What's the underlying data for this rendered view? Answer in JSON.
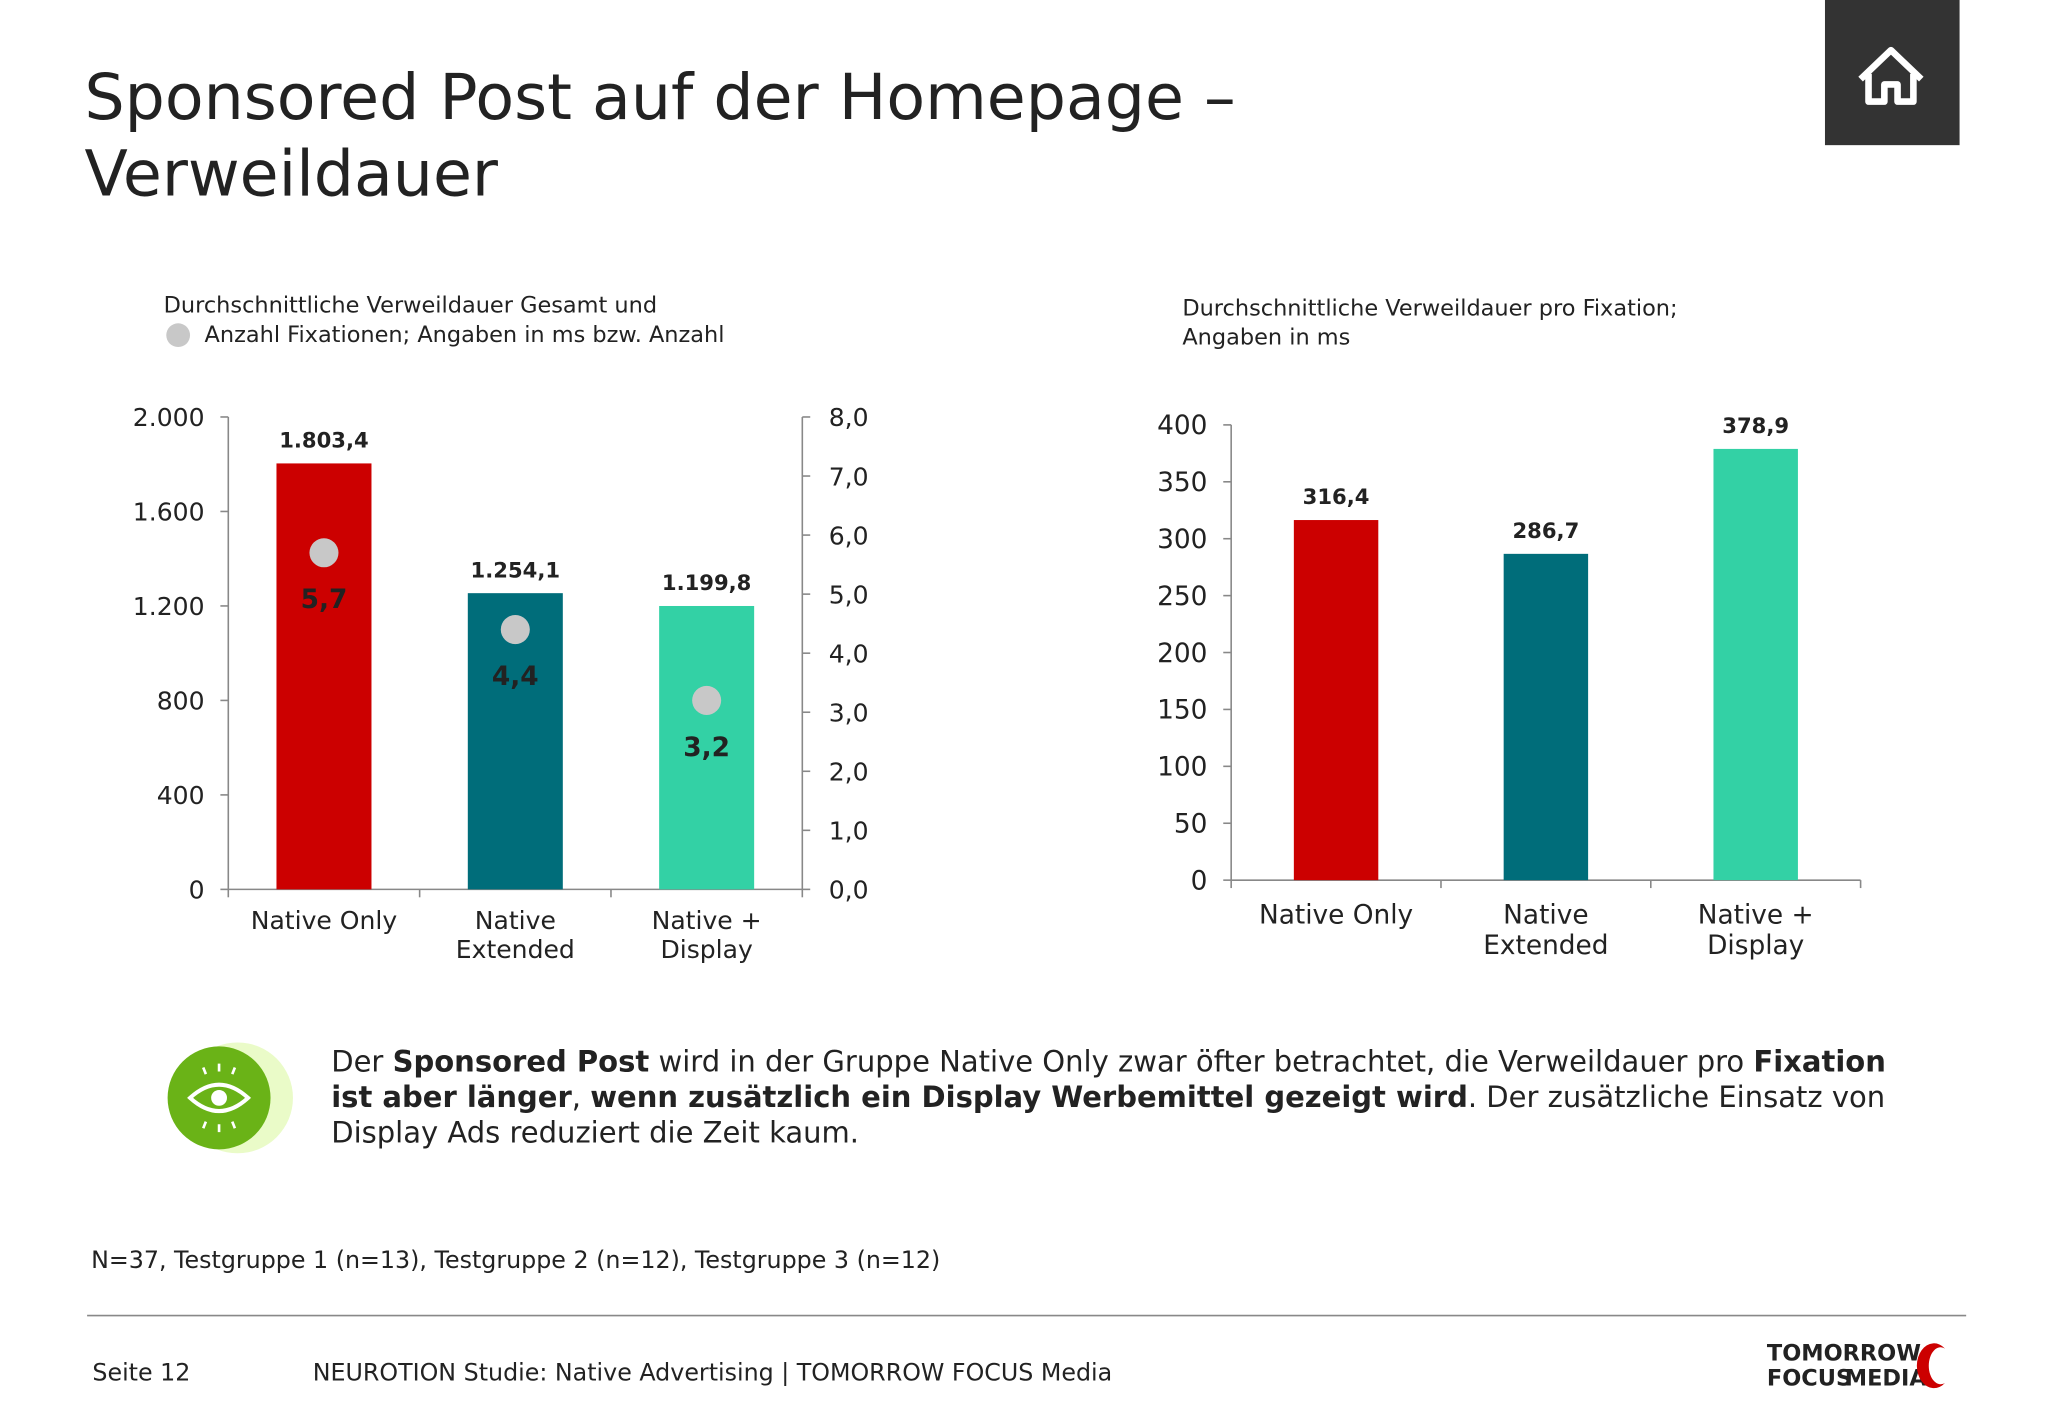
{
  "title": [
    "Sponsored Post auf der Homepage –",
    "Verweildauer"
  ],
  "chart_data": [
    {
      "type": "bar",
      "subtitle": [
        "Durchschnittliche Verweildauer Gesamt und",
        "Anzahl Fixationen; Angaben in ms bzw. Anzahl"
      ],
      "categories": [
        "Native Only",
        "Native\nExtended",
        "Native +\nDisplay"
      ],
      "values": [
        1803.4,
        1254.1,
        1199.8
      ],
      "value_labels": [
        "1.803,4",
        "1.254,1",
        "1.199,8"
      ],
      "colors": [
        "#cc0000",
        "#006d7a",
        "#33d1a5"
      ],
      "ylim": [
        0,
        2000
      ],
      "yticks": [
        0,
        400,
        800,
        {
          "value": 1200,
          "label": "1.200"
        },
        {
          "value": 1600,
          "label": "1.600"
        },
        {
          "value": 2000,
          "label": "2.000"
        }
      ],
      "y2lim": [
        0,
        8
      ],
      "y2ticks": [
        {
          "value": 0,
          "label": "0,0"
        },
        {
          "value": 1,
          "label": "1,0"
        },
        {
          "value": 2,
          "label": "2,0"
        },
        {
          "value": 3,
          "label": "3,0"
        },
        {
          "value": 4,
          "label": "4,0"
        },
        {
          "value": 5,
          "label": "5,0"
        },
        {
          "value": 6,
          "label": "6,0"
        },
        {
          "value": 7,
          "label": "7,0"
        },
        {
          "value": 8,
          "label": "8,0"
        }
      ],
      "dots": {
        "axis": "y2",
        "color": "#c8c8c8",
        "values": [
          5.7,
          4.4,
          3.2
        ],
        "value_labels": [
          "5,7",
          "4,4",
          "3,2"
        ]
      }
    },
    {
      "type": "bar",
      "subtitle": [
        "Durchschnittliche Verweildauer pro Fixation;",
        "Angaben in ms"
      ],
      "categories": [
        "Native Only",
        "Native\nExtended",
        "Native +\nDisplay"
      ],
      "values": [
        316.4,
        286.7,
        378.9
      ],
      "value_labels": [
        "316,4",
        "286,7",
        "378,9"
      ],
      "colors": [
        "#cc0000",
        "#006d7a",
        "#33d1a5"
      ],
      "ylim": [
        0,
        400
      ],
      "yticks": [
        0,
        50,
        100,
        150,
        200,
        250,
        300,
        350,
        400
      ]
    }
  ],
  "summary": [
    [
      {
        "text": "Der ",
        "bold": false
      },
      {
        "text": "Sponsored Post",
        "bold": true
      },
      {
        "text": " wird in der Gruppe Native Only zwar öfter betrachtet, die Verweildauer pro ",
        "bold": false
      },
      {
        "text": "Fixation",
        "bold": true
      }
    ],
    [
      {
        "text": "ist aber länger",
        "bold": true
      },
      {
        "text": ", ",
        "bold": false
      },
      {
        "text": "wenn zusätzlich ein Display Werbemittel gezeigt wird",
        "bold": true
      },
      {
        "text": ". Der zusätzliche Einsatz von",
        "bold": false
      }
    ],
    [
      {
        "text": "Display Ads reduziert die Zeit kaum.",
        "bold": false
      }
    ]
  ],
  "note": "N=37, Testgruppe 1 (n=13), Testgruppe 2 (n=12), Testgruppe 3 (n=12)",
  "footer": {
    "page": "Seite 12",
    "source": "NEUROTION Studie: Native Advertising | TOMORROW FOCUS Media"
  },
  "logo": [
    "TOMORROW",
    "FOCUS",
    "MEDIA"
  ]
}
